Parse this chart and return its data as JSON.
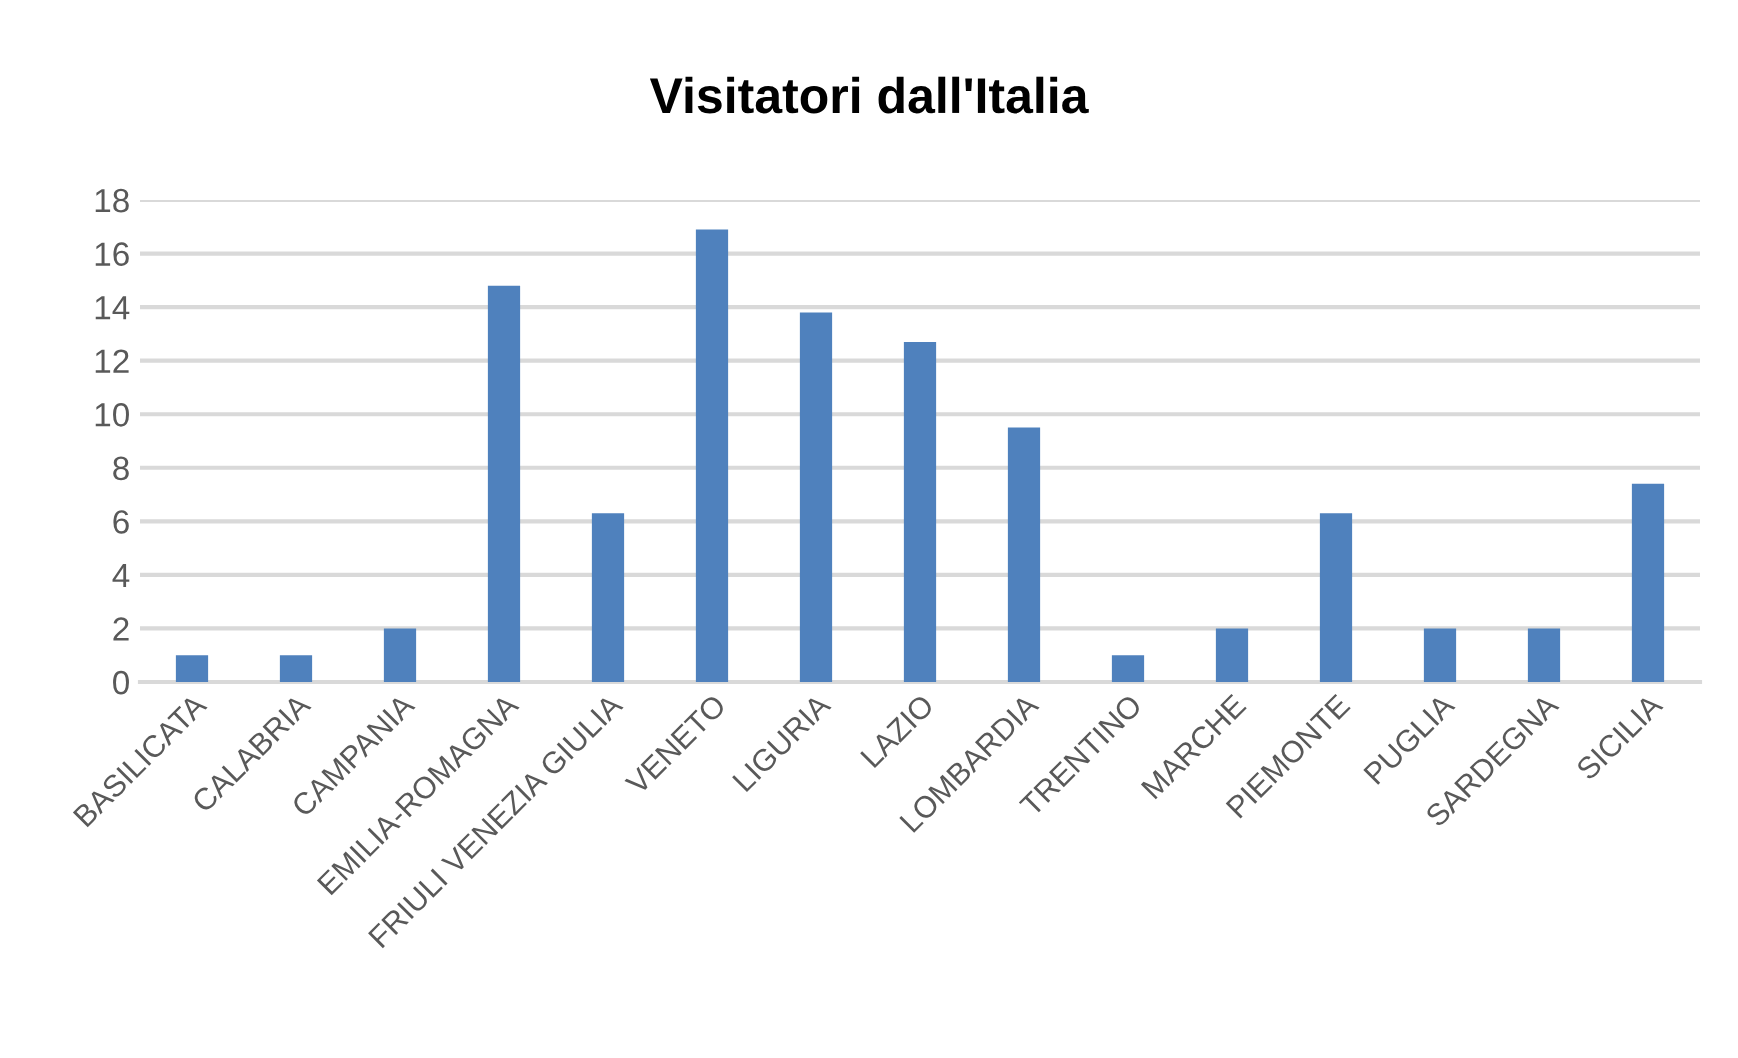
{
  "chart_data": {
    "type": "bar",
    "title": "Visitatori dall'Italia",
    "categories": [
      "BASILICATA",
      "CALABRIA",
      "CAMPANIA",
      "EMILIA-ROMAGNA",
      "FRIULI VENEZIA GIULIA",
      "VENETO",
      "LIGURIA",
      "LAZIO",
      "LOMBARDIA",
      "TRENTINO",
      "MARCHE",
      "PIEMONTE",
      "PUGLIA",
      "SARDEGNA",
      "SICILIA"
    ],
    "values": [
      1,
      1,
      2,
      14.8,
      6.3,
      16.9,
      13.8,
      12.7,
      9.5,
      1,
      2,
      6.3,
      2,
      2,
      7.4
    ],
    "color": "#4f81bd",
    "ylim": [
      0,
      18
    ],
    "yticks": [
      0,
      2,
      4,
      6,
      8,
      10,
      12,
      14,
      16,
      18
    ],
    "grid": "y",
    "legend": false
  }
}
